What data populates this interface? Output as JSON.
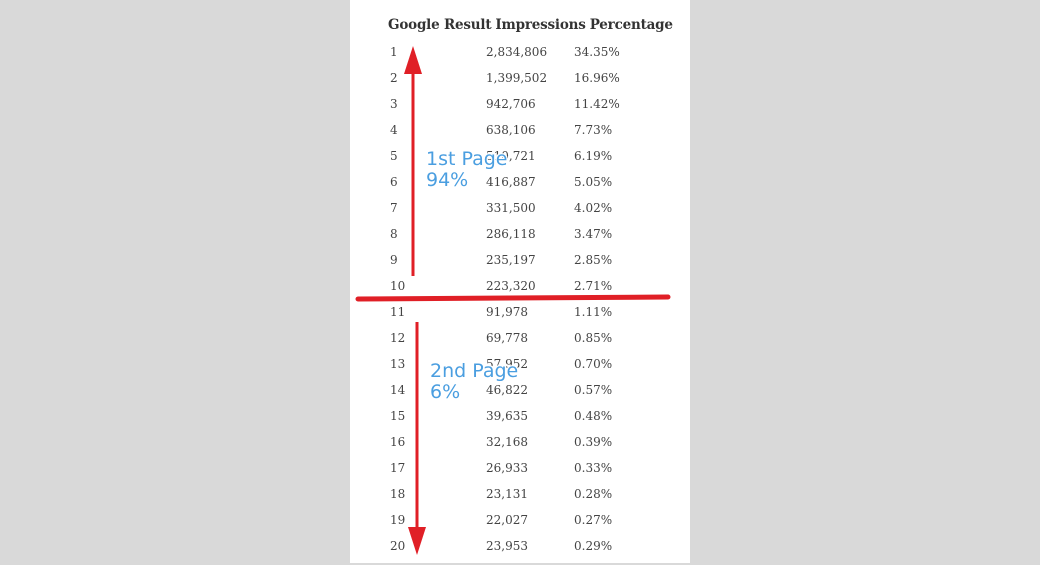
{
  "colors": {
    "background": "#d9d9d9",
    "page": "#ffffff",
    "text": "#444444",
    "annotation_line": "#e01f26",
    "callout_text": "#4a9ee0"
  },
  "annotations": {
    "first_page": {
      "title": "1st Page",
      "value": "94%"
    },
    "second_page": {
      "title": "2nd Page",
      "value": "6%"
    }
  },
  "chart_data": {
    "type": "table",
    "columns": [
      "Google Result",
      "Impressions",
      "Percentage"
    ],
    "rows": [
      {
        "rank": "1",
        "impressions": "2,834,806",
        "percentage": "34.35%"
      },
      {
        "rank": "2",
        "impressions": "1,399,502",
        "percentage": "16.96%"
      },
      {
        "rank": "3",
        "impressions": "942,706",
        "percentage": "11.42%"
      },
      {
        "rank": "4",
        "impressions": "638,106",
        "percentage": "7.73%"
      },
      {
        "rank": "5",
        "impressions": "510,721",
        "percentage": "6.19%"
      },
      {
        "rank": "6",
        "impressions": "416,887",
        "percentage": "5.05%"
      },
      {
        "rank": "7",
        "impressions": "331,500",
        "percentage": "4.02%"
      },
      {
        "rank": "8",
        "impressions": "286,118",
        "percentage": "3.47%"
      },
      {
        "rank": "9",
        "impressions": "235,197",
        "percentage": "2.85%"
      },
      {
        "rank": "10",
        "impressions": "223,320",
        "percentage": "2.71%"
      },
      {
        "rank": "11",
        "impressions": "91,978",
        "percentage": "1.11%"
      },
      {
        "rank": "12",
        "impressions": "69,778",
        "percentage": "0.85%"
      },
      {
        "rank": "13",
        "impressions": "57,952",
        "percentage": "0.70%"
      },
      {
        "rank": "14",
        "impressions": "46,822",
        "percentage": "0.57%"
      },
      {
        "rank": "15",
        "impressions": "39,635",
        "percentage": "0.48%"
      },
      {
        "rank": "16",
        "impressions": "32,168",
        "percentage": "0.39%"
      },
      {
        "rank": "17",
        "impressions": "26,933",
        "percentage": "0.33%"
      },
      {
        "rank": "18",
        "impressions": "23,131",
        "percentage": "0.28%"
      },
      {
        "rank": "19",
        "impressions": "22,027",
        "percentage": "0.27%"
      },
      {
        "rank": "20",
        "impressions": "23,953",
        "percentage": "0.29%"
      }
    ]
  }
}
